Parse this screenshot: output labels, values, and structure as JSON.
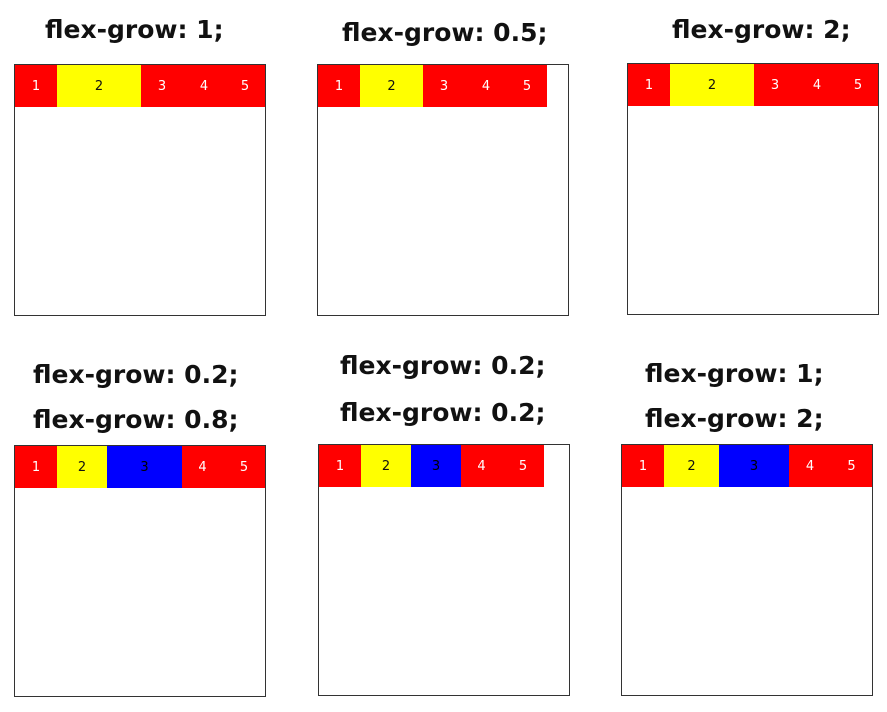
{
  "colors": {
    "red": "#ff0000",
    "yellow": "#ffff00",
    "blue": "#0000ff"
  },
  "demos": [
    {
      "labels": [
        "flex-grow: 1;"
      ],
      "items": [
        {
          "text": "1",
          "color": "red"
        },
        {
          "text": "2",
          "color": "yellow"
        },
        {
          "text": "3",
          "color": "red"
        },
        {
          "text": "4",
          "color": "red"
        },
        {
          "text": "5",
          "color": "red"
        }
      ]
    },
    {
      "labels": [
        "flex-grow: 0.5;"
      ],
      "items": [
        {
          "text": "1",
          "color": "red"
        },
        {
          "text": "2",
          "color": "yellow"
        },
        {
          "text": "3",
          "color": "red"
        },
        {
          "text": "4",
          "color": "red"
        },
        {
          "text": "5",
          "color": "red"
        }
      ]
    },
    {
      "labels": [
        "flex-grow: 2;"
      ],
      "items": [
        {
          "text": "1",
          "color": "red"
        },
        {
          "text": "2",
          "color": "yellow"
        },
        {
          "text": "3",
          "color": "red"
        },
        {
          "text": "4",
          "color": "red"
        },
        {
          "text": "5",
          "color": "red"
        }
      ]
    },
    {
      "labels": [
        "flex-grow: 0.2;",
        "flex-grow: 0.8;"
      ],
      "items": [
        {
          "text": "1",
          "color": "red"
        },
        {
          "text": "2",
          "color": "yellow"
        },
        {
          "text": "3",
          "color": "blue"
        },
        {
          "text": "4",
          "color": "red"
        },
        {
          "text": "5",
          "color": "red"
        }
      ]
    },
    {
      "labels": [
        "flex-grow: 0.2;",
        "flex-grow: 0.2;"
      ],
      "items": [
        {
          "text": "1",
          "color": "red"
        },
        {
          "text": "2",
          "color": "yellow"
        },
        {
          "text": "3",
          "color": "blue"
        },
        {
          "text": "4",
          "color": "red"
        },
        {
          "text": "5",
          "color": "red"
        }
      ]
    },
    {
      "labels": [
        "flex-grow: 1;",
        "flex-grow: 2;"
      ],
      "items": [
        {
          "text": "1",
          "color": "red"
        },
        {
          "text": "2",
          "color": "yellow"
        },
        {
          "text": "3",
          "color": "blue"
        },
        {
          "text": "4",
          "color": "red"
        },
        {
          "text": "5",
          "color": "red"
        }
      ]
    }
  ]
}
